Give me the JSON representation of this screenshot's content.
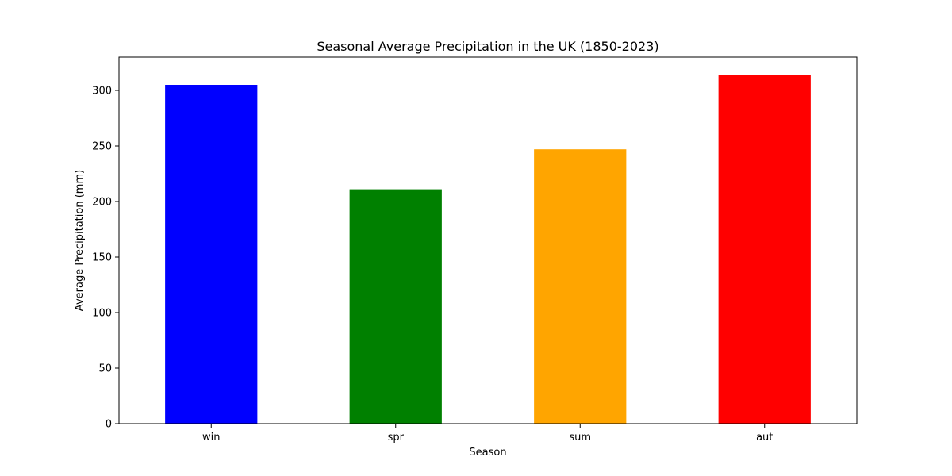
{
  "chart_data": {
    "type": "bar",
    "title": "Seasonal Average Precipitation in the UK (1850-2023)",
    "xlabel": "Season",
    "ylabel": "Average Precipitation (mm)",
    "categories": [
      "win",
      "spr",
      "sum",
      "aut"
    ],
    "values": [
      305,
      211,
      247,
      314
    ],
    "colors": [
      "#0000ff",
      "#008000",
      "#ffa500",
      "#ff0000"
    ],
    "ylim": [
      0,
      330
    ],
    "yticks": [
      0,
      50,
      100,
      150,
      200,
      250,
      300
    ],
    "grid": false,
    "legend": "none"
  }
}
